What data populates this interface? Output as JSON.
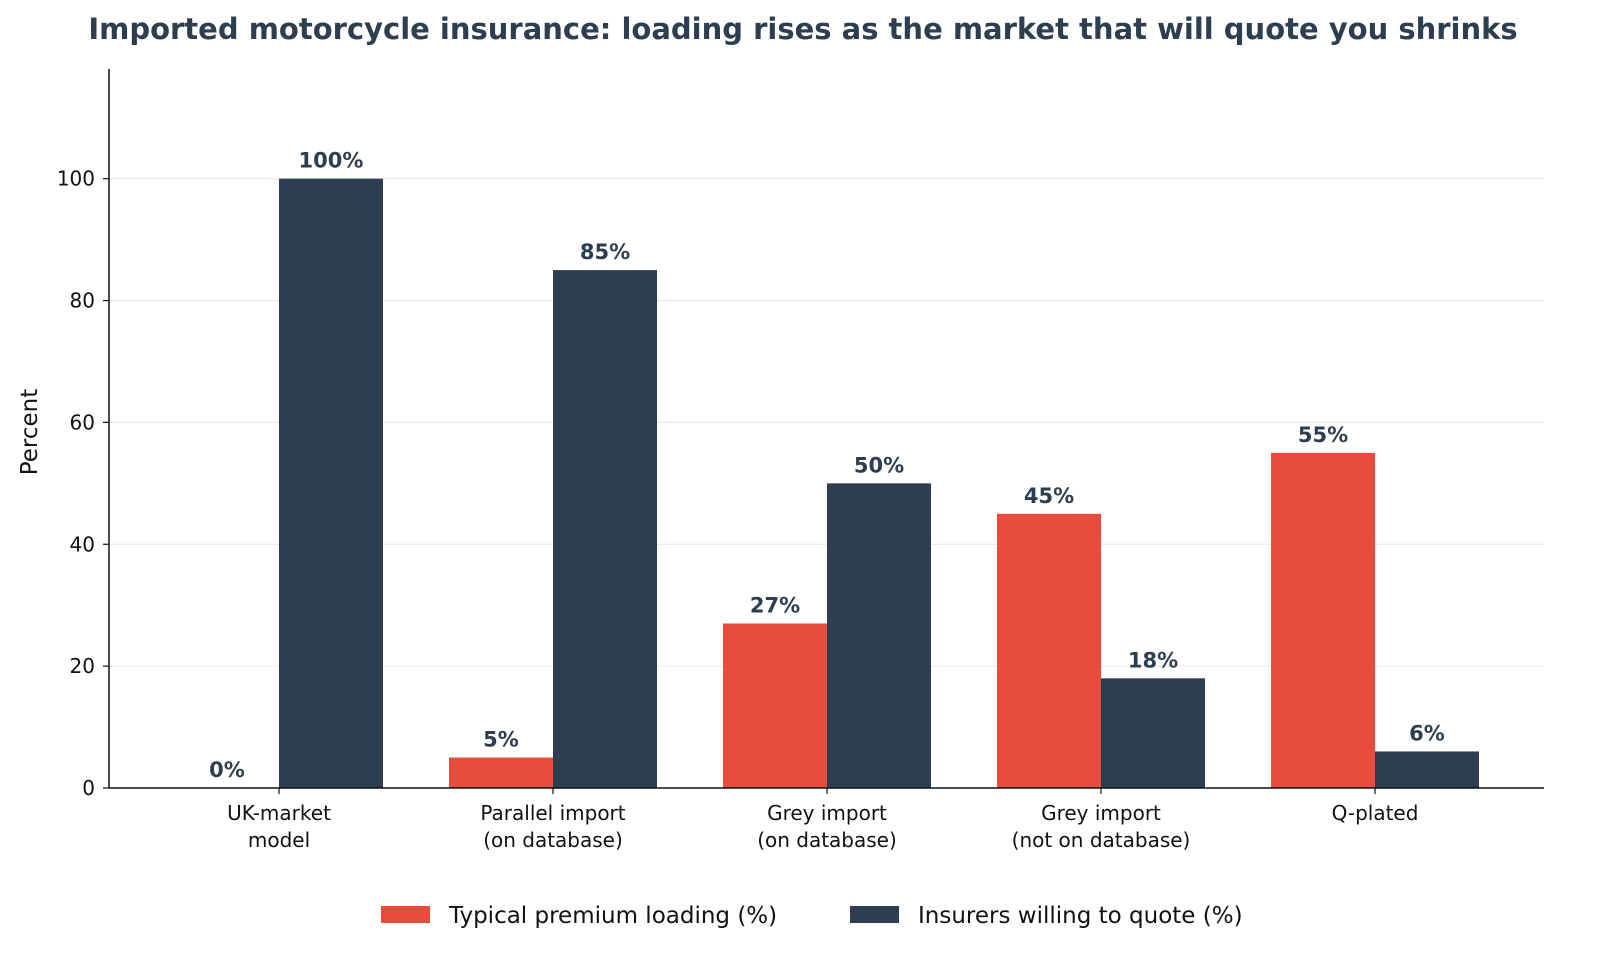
{
  "chart_data": {
    "type": "bar",
    "title": "Imported motorcycle insurance: loading rises as the market that will quote you shrinks",
    "xlabel": "",
    "ylabel": "Percent",
    "ylim": [
      0,
      118
    ],
    "yticks": [
      0,
      20,
      40,
      60,
      80,
      100
    ],
    "grid": "horizontal",
    "legend_position": "bottom-center",
    "categories": [
      [
        "UK-market",
        "model"
      ],
      [
        "Parallel import",
        "(on database)"
      ],
      [
        "Grey import",
        "(on database)"
      ],
      [
        "Grey import",
        "(not on database)"
      ],
      [
        "Q-plated"
      ]
    ],
    "series": [
      {
        "name": "Typical premium loading (%)",
        "color": "#e74c3c",
        "values": [
          0,
          5,
          27,
          45,
          55
        ],
        "labels": [
          "0%",
          "5%",
          "27%",
          "45%",
          "55%"
        ]
      },
      {
        "name": "Insurers willing to quote (%)",
        "color": "#2c3e50",
        "values": [
          100,
          85,
          50,
          18,
          6
        ],
        "labels": [
          "100%",
          "85%",
          "50%",
          "18%",
          "6%"
        ]
      }
    ]
  }
}
